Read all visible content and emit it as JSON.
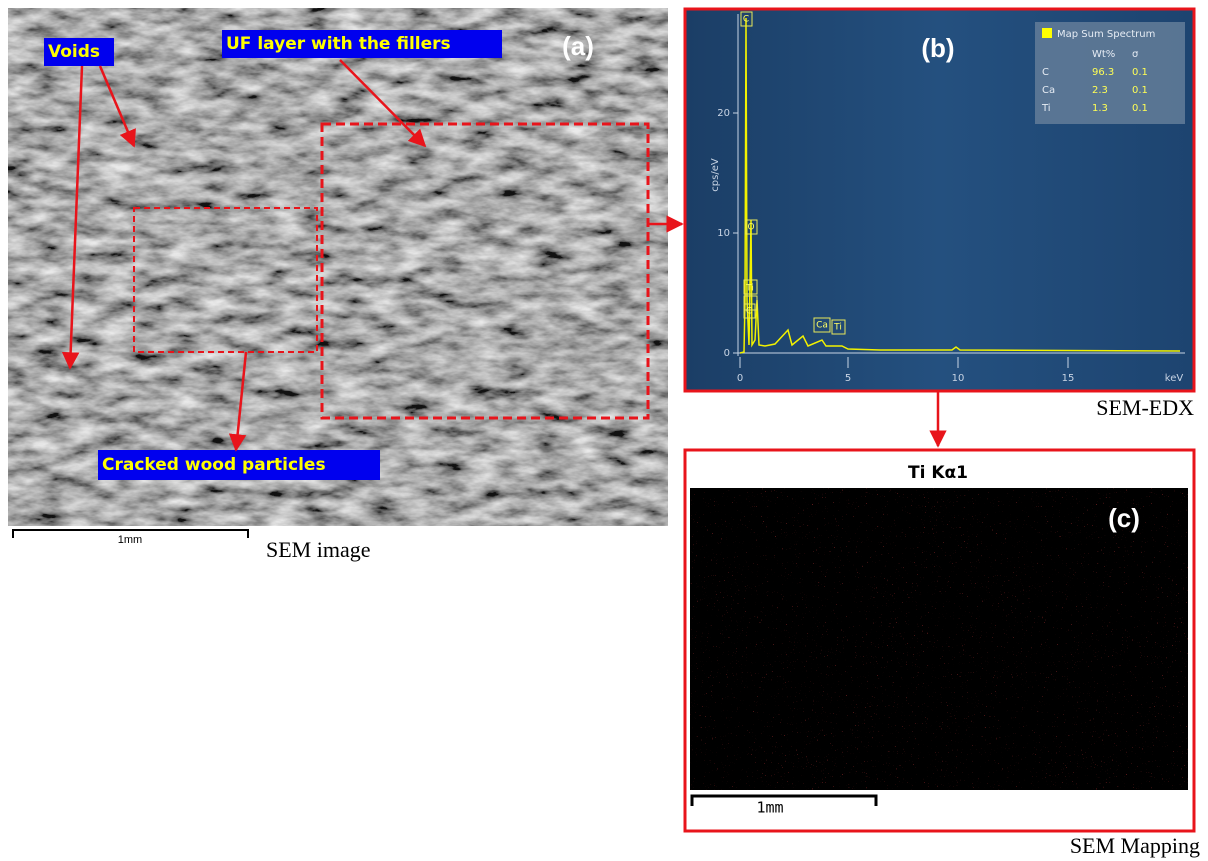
{
  "panel_a": {
    "label": "(a)",
    "annotations": [
      "Voids",
      "UF layer with the fillers",
      "Cracked wood particles"
    ],
    "scale_bar": "1mm",
    "caption": "SEM image"
  },
  "panel_b": {
    "label": "(b)",
    "y_axis_label": "cps/eV",
    "y_ticks": [
      "20",
      "10",
      "0"
    ],
    "x_ticks": [
      "0",
      "5",
      "10",
      "15"
    ],
    "x_unit": "keV",
    "peak_labels": [
      "C",
      "O",
      "Ti",
      "C",
      "Ca",
      "Ti"
    ],
    "legend": {
      "title": "Map Sum Spectrum",
      "header": [
        "Wt%",
        "σ"
      ],
      "rows": [
        [
          "C",
          "96.3",
          "0.1"
        ],
        [
          "Ca",
          "2.3",
          "0.1"
        ],
        [
          "Ti",
          "1.3",
          "0.1"
        ]
      ]
    },
    "caption": "SEM-EDX"
  },
  "panel_c": {
    "title": "Ti Kα1",
    "label": "(c)",
    "scale_bar": "1mm",
    "caption": "SEM Mapping"
  }
}
